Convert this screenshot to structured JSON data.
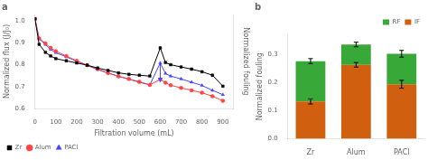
{
  "chart_data": [
    {
      "type": "line",
      "title": "a",
      "xlabel": "Filtration volume (mL)",
      "ylabel": "Normalized flux (J/J₀)",
      "y2label": "Normalized fouling",
      "x": [
        0,
        20,
        50,
        75,
        100,
        150,
        200,
        250,
        300,
        350,
        400,
        450,
        500,
        550,
        600,
        625,
        650,
        700,
        750,
        800,
        850,
        900
      ],
      "series": [
        {
          "name": "Zr",
          "color": "black",
          "marker": "square",
          "values": [
            1.01,
            0.893,
            0.857,
            0.84,
            0.828,
            0.818,
            0.808,
            0.798,
            0.785,
            0.774,
            0.763,
            0.756,
            0.752,
            0.748,
            0.877,
            0.81,
            0.8,
            0.79,
            0.78,
            0.768,
            0.752,
            0.702
          ]
        },
        {
          "name": "Alum",
          "color": "#ff4444",
          "marker": "circle",
          "values": [
            1.01,
            0.92,
            0.898,
            0.877,
            0.862,
            0.84,
            0.818,
            0.798,
            0.78,
            0.762,
            0.747,
            0.735,
            0.722,
            0.708,
            0.733,
            0.718,
            0.706,
            0.694,
            0.683,
            0.672,
            0.656,
            0.635
          ]
        },
        {
          "name": "PACl",
          "color": "#4444ff",
          "marker": "triangle",
          "values": [
            1.01,
            0.918,
            0.893,
            0.87,
            0.855,
            0.836,
            0.816,
            0.797,
            0.778,
            0.762,
            0.747,
            0.734,
            0.72,
            0.708,
            0.808,
            0.76,
            0.748,
            0.735,
            0.72,
            0.705,
            0.683,
            0.663
          ]
        }
      ],
      "xlim": [
        0,
        950
      ],
      "xticks": [
        0,
        100,
        200,
        300,
        400,
        500,
        600,
        700,
        800,
        900
      ],
      "ylim": [
        0.6,
        1.03
      ],
      "yticks": [
        0.6,
        0.7,
        0.8,
        0.9,
        {
          "value": 1.0,
          "label": "1.0"
        }
      ],
      "legend": "lower left",
      "grid": false,
      "annotations": [
        {
          "type": "arrow",
          "x": 600,
          "y_start": 0.808,
          "y_end": 0.72,
          "color": "#4444ff"
        }
      ]
    },
    {
      "type": "bar",
      "stacked": true,
      "title": "b",
      "ylabel": "Normalized fouling",
      "categories": [
        "Zr",
        "Alum",
        "PACl"
      ],
      "series": [
        {
          "name": "IF",
          "color": "#d06010",
          "values": [
            0.132,
            0.262,
            0.193
          ],
          "errors": [
            0.009,
            0.008,
            0.014
          ]
        },
        {
          "name": "RF",
          "color": "#38a838",
          "values": [
            0.143,
            0.072,
            0.108
          ],
          "errors": [
            0.009,
            0.008,
            0.012
          ]
        }
      ],
      "ylim": [
        0.0,
        0.37
      ],
      "yticks": [
        {
          "value": 0.0,
          "label": "0.0"
        },
        0.1,
        0.2,
        0.3
      ],
      "legend": "upper right",
      "grid": false
    }
  ]
}
